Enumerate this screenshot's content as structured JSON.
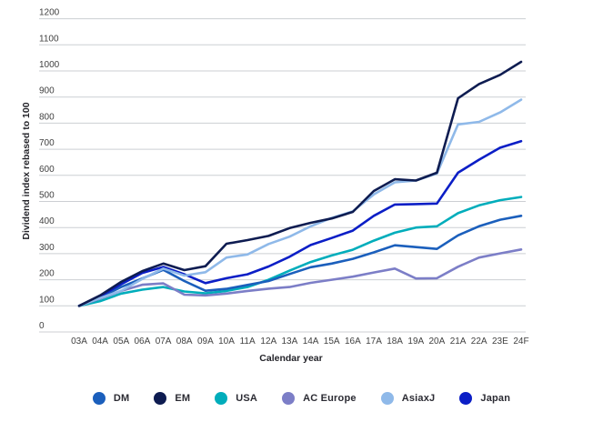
{
  "chart_data": {
    "type": "line",
    "title": "",
    "xlabel": "Calendar year",
    "ylabel": "Dividend index rebased to 100",
    "ylim": [
      0,
      1200
    ],
    "ytick_step": 100,
    "grid": "horizontal",
    "legend_position": "bottom",
    "categories": [
      "03A",
      "04A",
      "05A",
      "06A",
      "07A",
      "08A",
      "09A",
      "10A",
      "11A",
      "12A",
      "13A",
      "14A",
      "15A",
      "16A",
      "17A",
      "18A",
      "19A",
      "20A",
      "21A",
      "22A",
      "23E",
      "24F"
    ],
    "series": [
      {
        "name": "DM",
        "color": "#1b5fbc",
        "values": [
          100,
          133,
          172,
          205,
          238,
          195,
          158,
          165,
          180,
          195,
          222,
          248,
          262,
          280,
          305,
          332,
          325,
          318,
          370,
          405,
          430,
          445
        ]
      },
      {
        "name": "EM",
        "color": "#0e1c51",
        "values": [
          100,
          140,
          192,
          233,
          262,
          237,
          252,
          338,
          352,
          368,
          398,
          418,
          435,
          460,
          540,
          585,
          580,
          610,
          895,
          950,
          985,
          1035
        ]
      },
      {
        "name": "USA",
        "color": "#00adbb",
        "values": [
          100,
          118,
          147,
          162,
          172,
          155,
          148,
          157,
          172,
          200,
          235,
          268,
          293,
          315,
          350,
          380,
          400,
          405,
          455,
          485,
          505,
          517
        ]
      },
      {
        "name": "AC Europe",
        "color": "#7c7ec7",
        "values": [
          100,
          128,
          157,
          181,
          186,
          143,
          140,
          147,
          157,
          166,
          172,
          188,
          200,
          212,
          228,
          243,
          205,
          206,
          250,
          285,
          301,
          316
        ]
      },
      {
        "name": "AsiaxJ",
        "color": "#8fb9e9",
        "values": [
          100,
          130,
          158,
          203,
          243,
          216,
          229,
          285,
          297,
          337,
          365,
          405,
          437,
          462,
          527,
          573,
          580,
          607,
          795,
          805,
          841,
          890
        ]
      },
      {
        "name": "Japan",
        "color": "#0b1ec6",
        "values": [
          100,
          137,
          183,
          226,
          249,
          221,
          187,
          206,
          221,
          251,
          288,
          333,
          360,
          388,
          445,
          488,
          490,
          492,
          610,
          660,
          706,
          731
        ]
      }
    ],
    "draw_order": [
      "USA",
      "AC Europe",
      "DM",
      "Japan",
      "AsiaxJ",
      "EM"
    ]
  },
  "colors": {
    "background": "#ffffff",
    "gridline": "#cccfd3",
    "tick_text": "#414141",
    "axis_title": "#232329",
    "legend_text": "#2b2b33"
  }
}
